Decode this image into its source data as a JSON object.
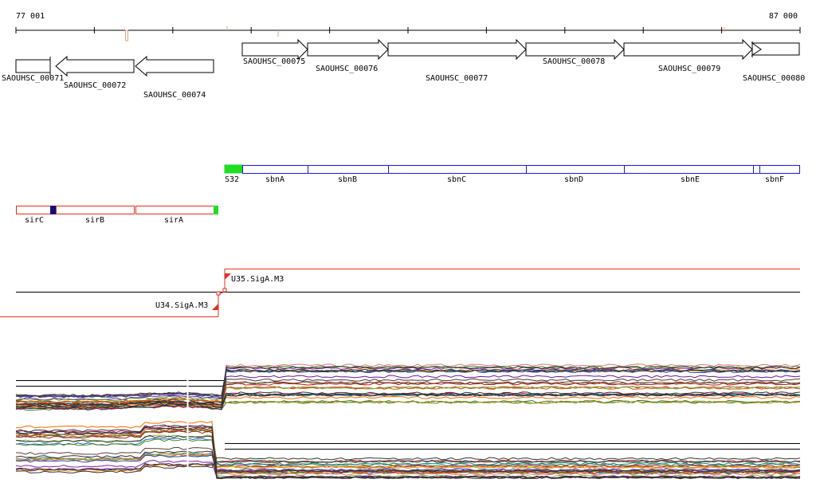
{
  "ruler": {
    "start_label": "77 001",
    "end_label": "87 000"
  },
  "genes": [
    {
      "locus": "SAOUHSC_00071",
      "strand": "+"
    },
    {
      "locus": "SAOUHSC_00072",
      "strand": "-"
    },
    {
      "locus": "SAOUHSC_00074",
      "strand": "-"
    },
    {
      "locus": "SAOUHSC_00075",
      "strand": "+"
    },
    {
      "locus": "SAOUHSC_00076",
      "strand": "+"
    },
    {
      "locus": "SAOUHSC_00077",
      "strand": "+"
    },
    {
      "locus": "SAOUHSC_00078",
      "strand": "+"
    },
    {
      "locus": "SAOUHSC_00079",
      "strand": "+"
    },
    {
      "locus": "SAOUHSC_00080",
      "strand": "+"
    }
  ],
  "operon_plus": {
    "outline_color": "#1a1ad6",
    "segments": [
      "S32",
      "sbnA",
      "sbnB",
      "sbnC",
      "sbnD",
      "sbnE",
      "sbnF"
    ]
  },
  "operon_minus": {
    "outline_color": "#e0301e",
    "segments": [
      "sirC",
      "sirB",
      "sirA"
    ]
  },
  "transcripts": [
    {
      "label": "U35.SigA.M3",
      "color": "#e0301e"
    },
    {
      "label": "U34.SigA.M3",
      "color": "#e0301e"
    }
  ],
  "colors": {
    "promoter_box": "#22dd22",
    "marker_dark": "#10107a",
    "tick_mark": "#e8a07a"
  }
}
